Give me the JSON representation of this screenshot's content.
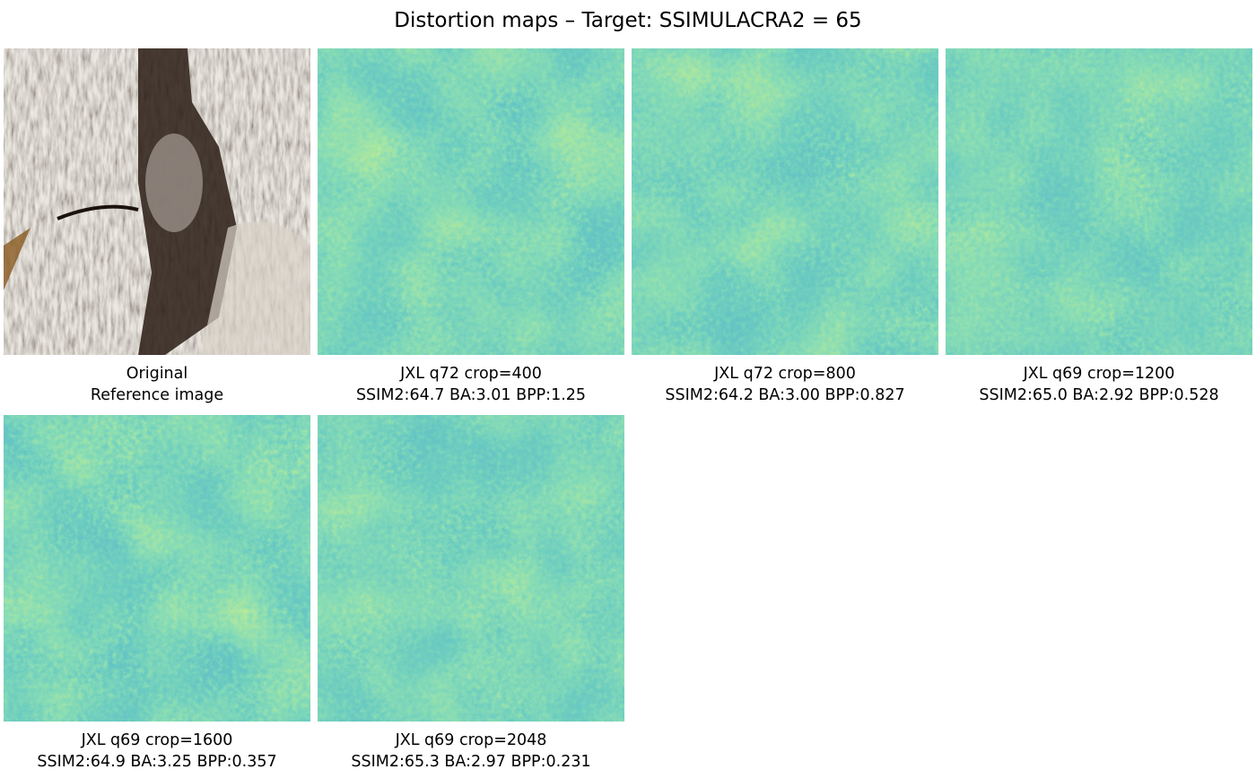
{
  "figure": {
    "title": "Distortion maps – Target: SSIMULACRA2 = 65",
    "colormap": [
      "#21918c",
      "#35b779",
      "#5ec962",
      "#fde725"
    ],
    "panels": [
      {
        "kind": "photo",
        "line1": "Original",
        "line2": "Reference image"
      },
      {
        "kind": "map",
        "line1": "JXL q72 crop=400",
        "line2": "SSIM2:64.7 BA:3.01 BPP:1.25"
      },
      {
        "kind": "map",
        "line1": "JXL q72 crop=800",
        "line2": "SSIM2:64.2 BA:3.00 BPP:0.827"
      },
      {
        "kind": "map",
        "line1": "JXL q69 crop=1200",
        "line2": "SSIM2:65.0 BA:2.92 BPP:0.528"
      },
      {
        "kind": "map",
        "line1": "JXL q69 crop=1600",
        "line2": "SSIM2:64.9 BA:3.25 BPP:0.357"
      },
      {
        "kind": "map",
        "line1": "JXL q69 crop=2048",
        "line2": "SSIM2:65.3 BA:2.97 BPP:0.231"
      }
    ]
  }
}
